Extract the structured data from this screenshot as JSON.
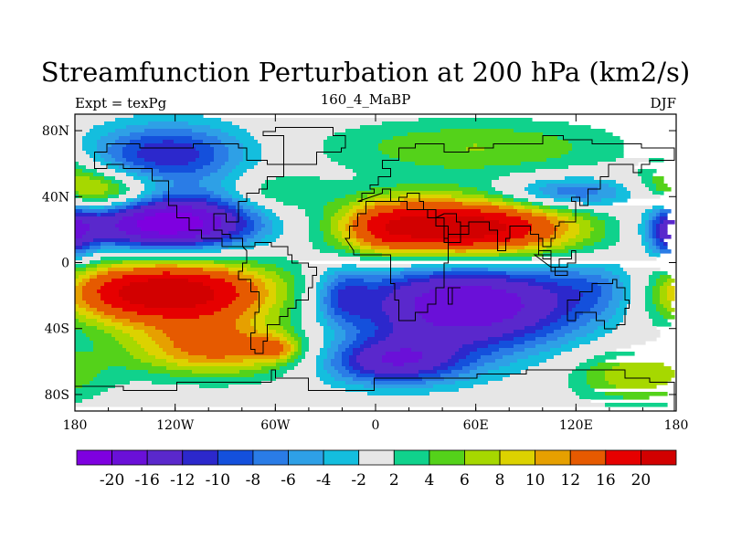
{
  "chart_data": {
    "type": "heatmap",
    "title": "Streamfunction Perturbation at 200 hPa (km2/s)",
    "left_string": "Expt = texPg",
    "center_string": "160_4_MaBP",
    "right_string": "DJF",
    "xlabel": "",
    "ylabel": "",
    "xlim": [
      -180,
      180
    ],
    "ylim": [
      -90,
      90
    ],
    "x_ticks": [
      {
        "value": -180,
        "label": "180"
      },
      {
        "value": -120,
        "label": "120W"
      },
      {
        "value": -60,
        "label": "60W"
      },
      {
        "value": 0,
        "label": "0"
      },
      {
        "value": 60,
        "label": "60E"
      },
      {
        "value": 120,
        "label": "120E"
      },
      {
        "value": 180,
        "label": "180"
      }
    ],
    "y_ticks": [
      {
        "value": 80,
        "label": "80N"
      },
      {
        "value": 40,
        "label": "40N"
      },
      {
        "value": 0,
        "label": "0"
      },
      {
        "value": -40,
        "label": "40S"
      },
      {
        "value": -80,
        "label": "80S"
      }
    ],
    "levels": [
      -20,
      -16,
      -12,
      -10,
      -8,
      -6,
      -4,
      -2,
      2,
      4,
      6,
      8,
      10,
      12,
      16,
      20
    ],
    "level_labels": [
      "-20",
      "-16",
      "-12",
      "-10",
      "-8",
      "-6",
      "-4",
      "-2",
      "2",
      "4",
      "6",
      "8",
      "10",
      "12",
      "16",
      "20"
    ],
    "colors": [
      "#7e00e0",
      "#6a10d8",
      "#5a28cc",
      "#2c28cc",
      "#1450dc",
      "#2a7ce6",
      "#2ea0e6",
      "#14bede",
      "#e6e6e6",
      "#10d28c",
      "#54d21a",
      "#a6d800",
      "#dcd200",
      "#e6a000",
      "#e65a00",
      "#e60000",
      "#d20000"
    ],
    "features": [
      {
        "lon": -125,
        "lat": 66,
        "slon": 34,
        "slat": 13,
        "amp": -12
      },
      {
        "lon": -125,
        "lat": 24,
        "slon": 38,
        "slat": 12,
        "amp": -24
      },
      {
        "lon": -165,
        "lat": 42,
        "slon": 24,
        "slat": 9,
        "amp": 12
      },
      {
        "lon": -60,
        "lat": 42,
        "slon": 20,
        "slat": 9,
        "amp": 5
      },
      {
        "lon": -125,
        "lat": -18,
        "slon": 48,
        "slat": 14,
        "amp": 24
      },
      {
        "lon": -95,
        "lat": -52,
        "slon": 38,
        "slat": 12,
        "amp": 13
      },
      {
        "lon": -60,
        "lat": -52,
        "slon": 10,
        "slat": 5,
        "amp": 7
      },
      {
        "lon": 55,
        "lat": 20,
        "slon": 48,
        "slat": 14,
        "amp": 24
      },
      {
        "lon": 5,
        "lat": 22,
        "slon": 18,
        "slat": 12,
        "amp": 7
      },
      {
        "lon": 60,
        "lat": 70,
        "slon": 65,
        "slat": 12,
        "amp": 6
      },
      {
        "lon": 115,
        "lat": 42,
        "slon": 30,
        "slat": 7,
        "amp": -10
      },
      {
        "lon": 55,
        "lat": -25,
        "slon": 50,
        "slat": 20,
        "amp": -20
      },
      {
        "lon": 10,
        "lat": -60,
        "slon": 30,
        "slat": 10,
        "amp": -14
      },
      {
        "lon": -20,
        "lat": -20,
        "slon": 12,
        "slat": 12,
        "amp": -7
      },
      {
        "lon": 140,
        "lat": -15,
        "slon": 22,
        "slat": 12,
        "amp": -6
      },
      {
        "lon": 155,
        "lat": -68,
        "slon": 28,
        "slat": 12,
        "amp": 8
      },
      {
        "lon": 178,
        "lat": 18,
        "slon": 10,
        "slat": 12,
        "amp": -12
      },
      {
        "lon": 178,
        "lat": 55,
        "slon": 14,
        "slat": 8,
        "amp": 4
      }
    ]
  }
}
